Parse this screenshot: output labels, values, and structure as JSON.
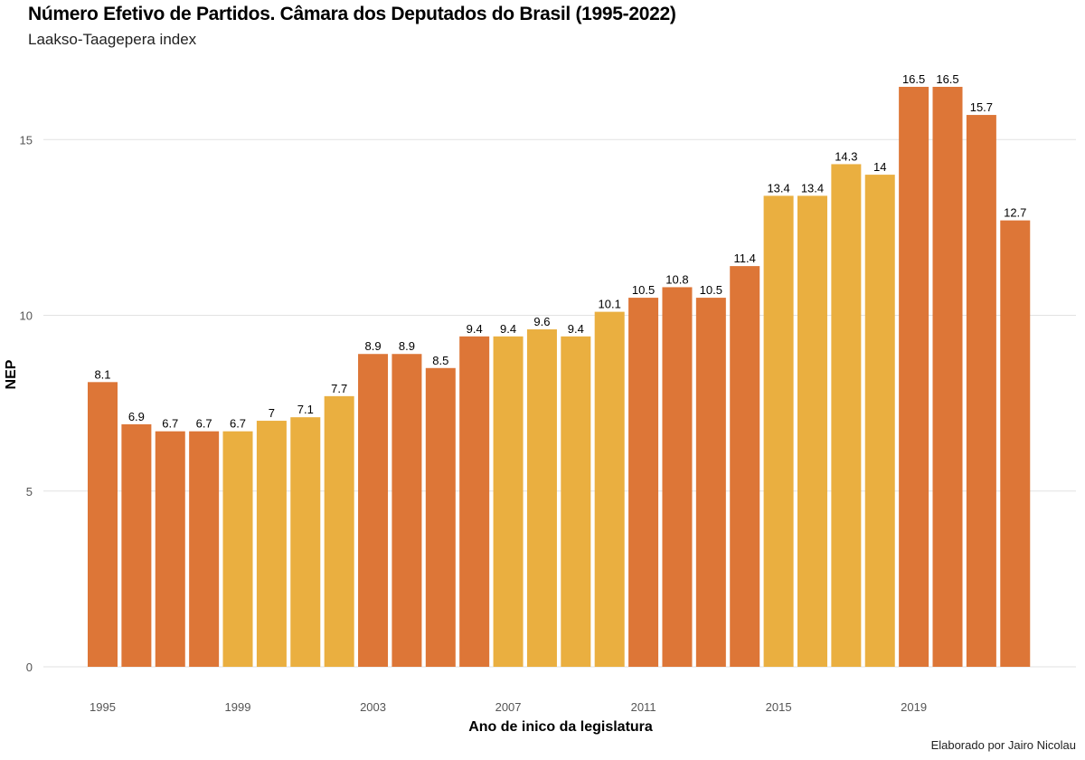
{
  "chart_data": {
    "type": "bar",
    "title": "Número Efetivo de Partidos. Câmara dos Deputados do Brasil (1995-2022)",
    "subtitle": "Laakso-Taagepera index",
    "xlabel": "Ano de inico da legislatura",
    "ylabel": "NEP",
    "caption": "Elaborado por Jairo Nicolau",
    "ylim": [
      0,
      16.5
    ],
    "yticks": [
      0,
      5,
      10,
      15
    ],
    "xticks": [
      "1995",
      "1999",
      "2003",
      "2007",
      "2011",
      "2015",
      "2019"
    ],
    "grid": true,
    "colors": {
      "legislature_a": "#DD7637",
      "legislature_b": "#EAAF40"
    },
    "categories": [
      "1995",
      "1996",
      "1997",
      "1998",
      "1999",
      "2000",
      "2001",
      "2002",
      "2003",
      "2004",
      "2005",
      "2006",
      "2007",
      "2008",
      "2009",
      "2010",
      "2011",
      "2012",
      "2013",
      "2014",
      "2015",
      "2016",
      "2017",
      "2018",
      "2019",
      "2020",
      "2021",
      "2022"
    ],
    "values": [
      8.1,
      6.9,
      6.7,
      6.7,
      6.7,
      7,
      7.1,
      7.7,
      8.9,
      8.9,
      8.5,
      9.4,
      9.4,
      9.6,
      9.4,
      10.1,
      10.5,
      10.8,
      10.5,
      11.4,
      13.4,
      13.4,
      14.3,
      14,
      16.5,
      16.5,
      15.7,
      12.7
    ],
    "labels": [
      "8.1",
      "6.9",
      "6.7",
      "6.7",
      "6.7",
      "7",
      "7.1",
      "7.7",
      "8.9",
      "8.9",
      "8.5",
      "9.4",
      "9.4",
      "9.6",
      "9.4",
      "10.1",
      "10.5",
      "10.8",
      "10.5",
      "11.4",
      "13.4",
      "13.4",
      "14.3",
      "14",
      "16.5",
      "16.5",
      "15.7",
      "12.7"
    ],
    "color_group": [
      "a",
      "a",
      "a",
      "a",
      "b",
      "b",
      "b",
      "b",
      "a",
      "a",
      "a",
      "a",
      "b",
      "b",
      "b",
      "b",
      "a",
      "a",
      "a",
      "a",
      "b",
      "b",
      "b",
      "b",
      "a",
      "a",
      "a",
      "a"
    ]
  }
}
